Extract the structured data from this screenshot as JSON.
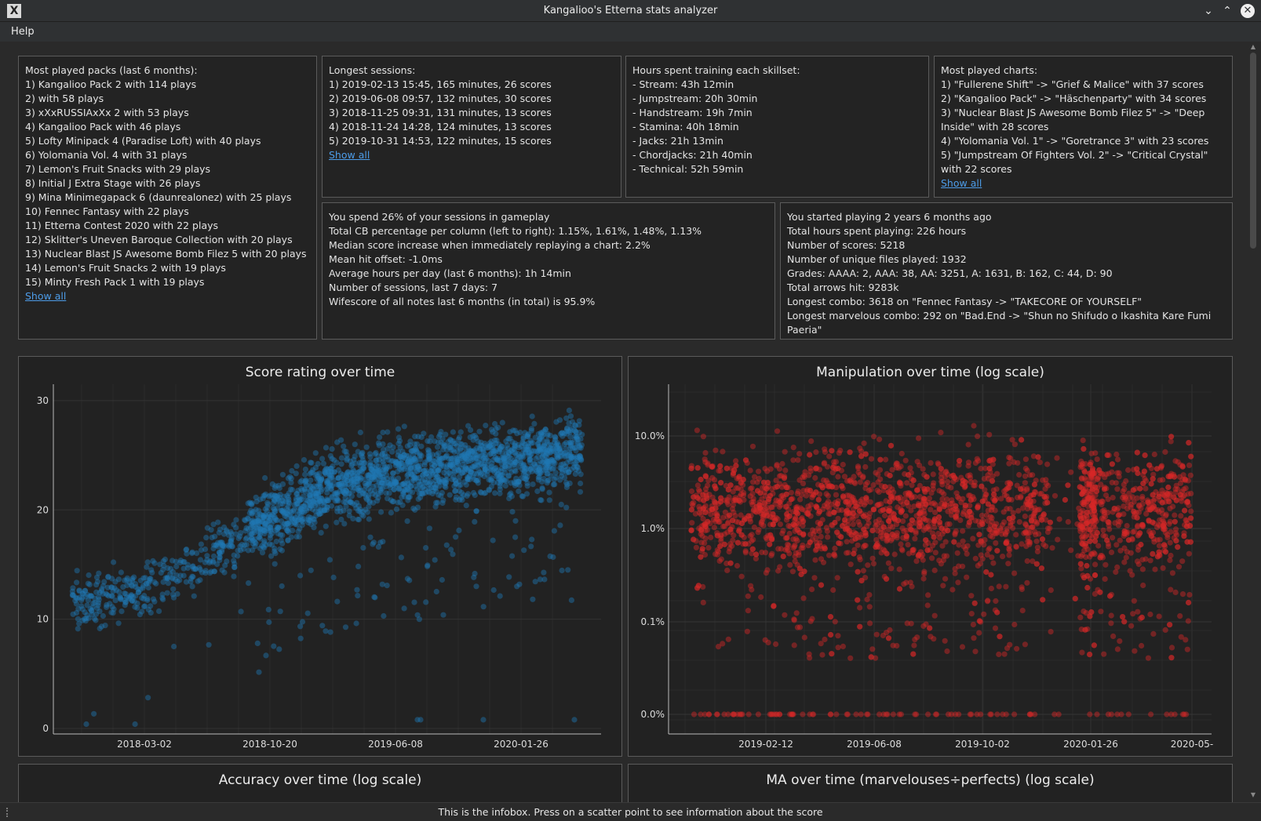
{
  "window": {
    "title": "Kangalioo's Etterna stats analyzer",
    "icon": "X",
    "minimize_glyph": "⌄",
    "maximize_glyph": "⌃",
    "close_glyph": "✕"
  },
  "menu": {
    "help": "Help"
  },
  "boxes": {
    "packs": {
      "heading": "Most played packs (last 6 months):",
      "lines": [
        "1) Kangalioo Pack 2 with 114 plays",
        "2)  with 58 plays",
        "3) xXxRUSSIAxXx 2 with 53 plays",
        "4) Kangalioo Pack with 46 plays",
        "5) Lofty Minipack 4 (Paradise Loft) with 40 plays",
        "6) Yolomania Vol. 4 with 31 plays",
        "7) Lemon's Fruit Snacks with 29 plays",
        "8) Initial J Extra Stage with 26 plays",
        "9) Mina Minimegapack 6 (daunrealonez) with 25 plays",
        "10) Fennec Fantasy with 22 plays",
        "11) Etterna Contest 2020 with 22 plays",
        "12) Sklitter's Uneven Baroque Collection with 20 plays",
        "13) Nuclear Blast JS Awesome Bomb Filez 5 with 20 plays",
        "14) Lemon's Fruit Snacks 2 with 19 plays",
        "15) Minty Fresh Pack 1 with 19 plays"
      ],
      "link": "Show all"
    },
    "sessions": {
      "heading": "Longest sessions:",
      "lines": [
        "1) 2019-02-13 15:45, 165 minutes, 26 scores",
        "2) 2019-06-08 09:57, 132 minutes, 30 scores",
        "3) 2018-11-25 09:31, 131 minutes, 13 scores",
        "4) 2018-11-24 14:28, 124 minutes, 13 scores",
        "5) 2019-10-31 14:53, 122 minutes, 15 scores"
      ],
      "link": "Show all"
    },
    "skillsets": {
      "heading": "Hours spent training each skillset:",
      "lines": [
        "- Stream: 43h 12min",
        "- Jumpstream: 20h 30min",
        "- Handstream: 19h 7min",
        "- Stamina: 40h 18min",
        "- Jacks: 21h 13min",
        "- Chordjacks: 21h 40min",
        "- Technical: 52h 59min"
      ]
    },
    "charts": {
      "heading": "Most played charts:",
      "lines": [
        "1) \"Fullerene Shift\" -> \"Grief & Malice\" with 37 scores",
        "2) \"Kangalioo Pack\" -> \"Häschenparty\" with 34 scores",
        "3) \"Nuclear Blast JS Awesome Bomb Filez 5\" -> \"Deep Inside\" with 28 scores",
        "4) \"Yolomania Vol. 1\" -> \"Goretrance 3\" with 23 scores",
        "5) \"Jumpstream Of Fighters Vol. 2\" -> \"Critical Crystal\" with 22 scores"
      ],
      "link": "Show all"
    },
    "gameplay": {
      "lines": [
        "You spend 26% of your sessions in gameplay",
        "Total CB percentage per column (left to right): 1.15%, 1.61%, 1.48%, 1.13%",
        "Median score increase when immediately replaying a chart: 2.2%",
        "Mean hit offset: -1.0ms",
        "Average hours per day (last 6 months): 1h 14min",
        "Number of sessions, last 7 days: 7",
        "Wifescore of all notes last 6 months (in total) is 95.9%"
      ]
    },
    "general": {
      "lines": [
        "You started playing 2 years 6 months ago",
        "Total hours spent playing: 226 hours",
        "Number of scores: 5218",
        "Number of unique files played: 1932",
        "Grades: AAAA: 2, AAA: 38, AA: 3251, A: 1631, B: 162, C: 44, D: 90",
        "Total arrows hit: 9283k",
        "Longest combo: 3618 on \"Fennec Fantasy -> \"TAKECORE OF YOURSELF\"",
        "Longest marvelous combo: 292 on \"Bad.End -> \"Shun no Shifudo o Ikashita Kare Fumi Paeria\""
      ]
    }
  },
  "chart_data": [
    {
      "type": "scatter",
      "title": "Score rating over time",
      "xlabel": "",
      "ylabel": "",
      "color": "#1f77b4",
      "x_tick_labels": [
        "2018-03-02",
        "2018-10-20",
        "2019-06-08",
        "2020-01-26"
      ],
      "y_ticks": [
        0,
        10,
        20,
        30
      ],
      "ylim": [
        -0.5,
        31.5
      ],
      "series_trend": [
        {
          "date": "2017-10",
          "median": 11.5
        },
        {
          "date": "2018-03",
          "median": 12.5
        },
        {
          "date": "2018-07",
          "median": 15
        },
        {
          "date": "2018-10",
          "median": 19
        },
        {
          "date": "2019-02",
          "median": 22
        },
        {
          "date": "2019-06",
          "median": 23.5
        },
        {
          "date": "2019-10",
          "median": 24
        },
        {
          "date": "2020-02",
          "median": 24.5
        },
        {
          "date": "2020-05",
          "median": 25.5
        }
      ]
    },
    {
      "type": "scatter",
      "title": "Manipulation over time (log scale)",
      "xlabel": "",
      "ylabel": "",
      "color": "#d62728",
      "x_tick_labels": [
        "2019-02-12",
        "2019-06-08",
        "2019-10-02",
        "2020-01-26",
        "2020-05-"
      ],
      "y_tick_labels": [
        "0.0%",
        "0.1%",
        "1.0%",
        "10.0%"
      ],
      "scale": "log"
    },
    {
      "type": "scatter",
      "title": "Accuracy over time (log scale)"
    },
    {
      "type": "scatter",
      "title": "MA over time (marvelouses÷perfects) (log scale)"
    }
  ],
  "status": {
    "infobox": "This is the infobox. Press on a scatter point to see information about the score"
  }
}
